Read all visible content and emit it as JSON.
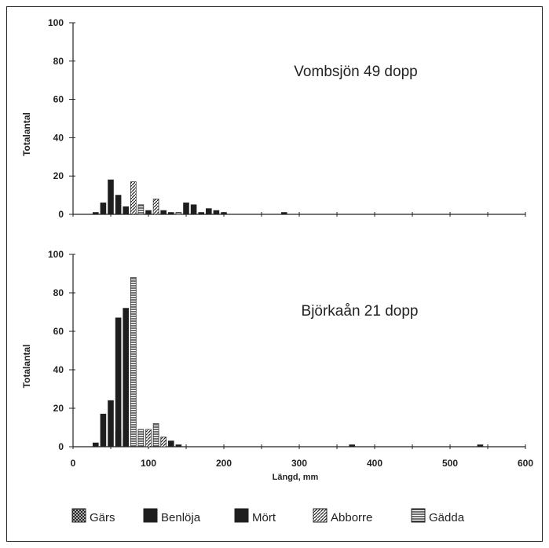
{
  "chart_data": [
    {
      "type": "bar",
      "title": "Vombsjön 49 dopp",
      "xlabel": "",
      "ylabel": "Totalantal",
      "xlim": [
        0,
        600
      ],
      "ylim": [
        0,
        100
      ],
      "xticks": [
        0,
        100,
        200,
        300,
        400,
        500,
        600
      ],
      "yticks": [
        0,
        20,
        40,
        60,
        80,
        100
      ],
      "series": [
        {
          "name": "Gärs",
          "points": []
        },
        {
          "name": "Benlöja",
          "points": [
            [
              30,
              1
            ],
            [
              40,
              6
            ],
            [
              50,
              18
            ],
            [
              60,
              10
            ]
          ]
        },
        {
          "name": "Mört",
          "points": [
            [
              70,
              4
            ],
            [
              90,
              1
            ],
            [
              100,
              2
            ],
            [
              120,
              2
            ],
            [
              130,
              1
            ],
            [
              150,
              6
            ],
            [
              160,
              5
            ],
            [
              170,
              1
            ],
            [
              180,
              3
            ],
            [
              190,
              2
            ],
            [
              200,
              1
            ],
            [
              280,
              1
            ]
          ]
        },
        {
          "name": "Abborre",
          "points": [
            [
              80,
              17
            ],
            [
              110,
              8
            ]
          ]
        },
        {
          "name": "Gädda",
          "points": [
            [
              90,
              5
            ],
            [
              140,
              1
            ]
          ]
        }
      ]
    },
    {
      "type": "bar",
      "title": "Björkaån 21 dopp",
      "xlabel": "Längd, mm",
      "ylabel": "Totalantal",
      "xlim": [
        0,
        600
      ],
      "ylim": [
        0,
        100
      ],
      "xticks": [
        0,
        100,
        200,
        300,
        400,
        500,
        600
      ],
      "yticks": [
        0,
        20,
        40,
        60,
        80,
        100
      ],
      "series": [
        {
          "name": "Gärs",
          "points": [
            [
              60,
              8
            ],
            [
              70,
              4
            ]
          ]
        },
        {
          "name": "Benlöja",
          "points": [
            [
              30,
              2
            ],
            [
              40,
              17
            ],
            [
              50,
              24
            ],
            [
              60,
              67
            ],
            [
              70,
              72
            ]
          ]
        },
        {
          "name": "Mört",
          "points": [
            [
              90,
              1
            ],
            [
              110,
              7
            ],
            [
              130,
              3
            ],
            [
              140,
              1
            ],
            [
              370,
              1
            ],
            [
              540,
              1
            ]
          ]
        },
        {
          "name": "Abborre",
          "points": [
            [
              100,
              9
            ],
            [
              120,
              5
            ]
          ]
        },
        {
          "name": "Gädda",
          "points": [
            [
              80,
              88
            ],
            [
              90,
              9
            ],
            [
              110,
              12
            ]
          ]
        }
      ]
    }
  ],
  "legend": [
    {
      "name": "Gärs",
      "pattern": "cross"
    },
    {
      "name": "Benlöja",
      "pattern": "solid"
    },
    {
      "name": "Mört",
      "pattern": "solid"
    },
    {
      "name": "Abborre",
      "pattern": "diag"
    },
    {
      "name": "Gädda",
      "pattern": "hstripe"
    }
  ]
}
